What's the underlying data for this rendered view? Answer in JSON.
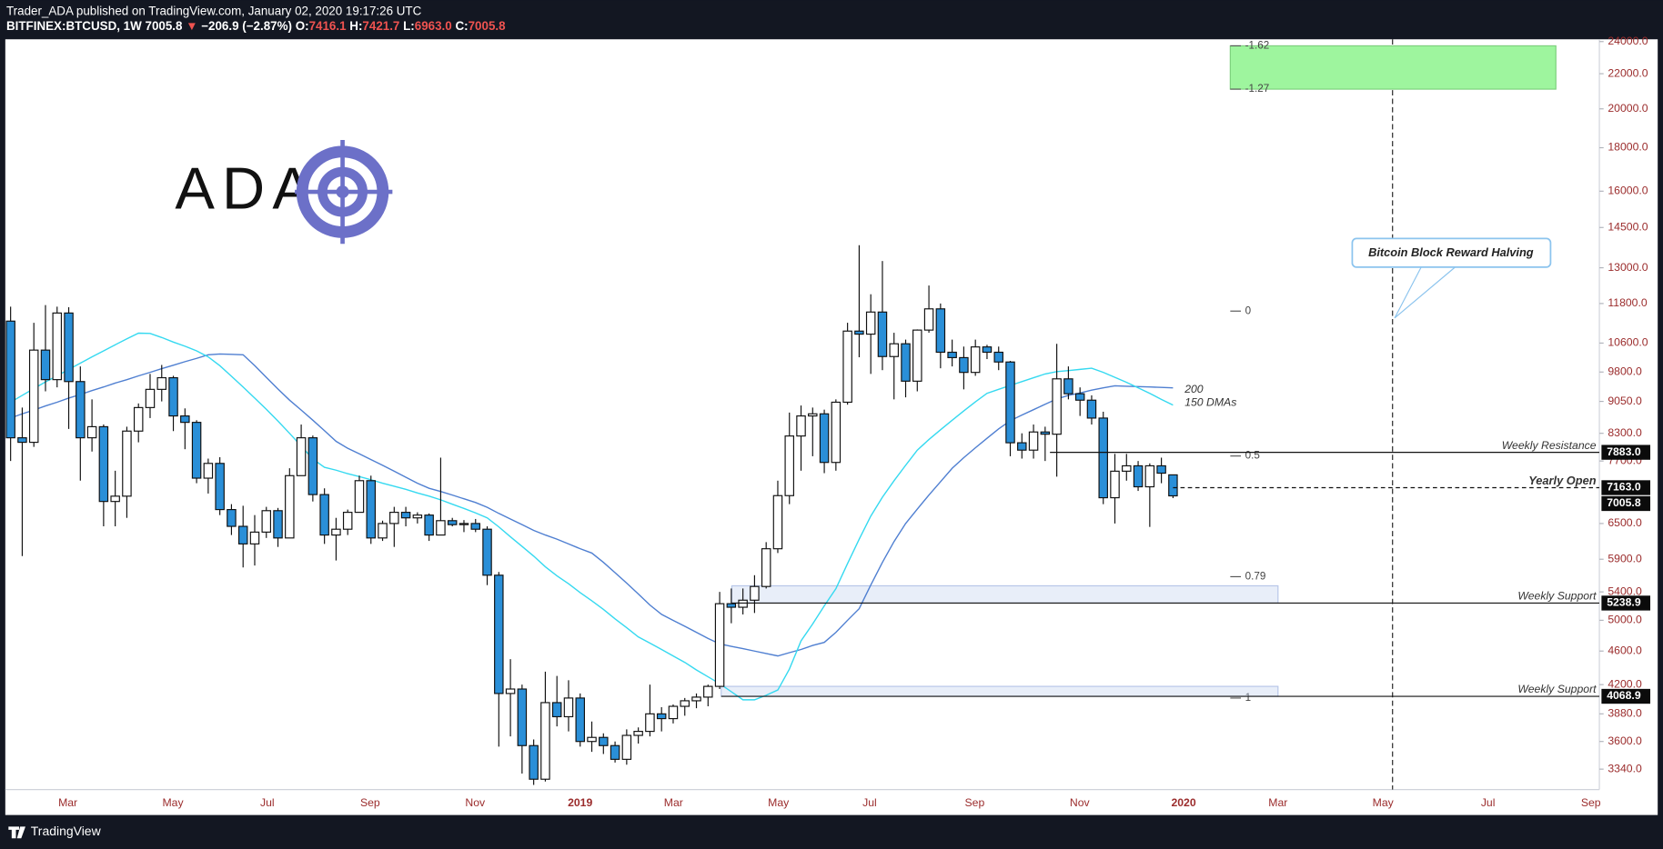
{
  "header": {
    "published": "Trader_ADA published on TradingView.com, January 02, 2020 19:17:26 UTC",
    "symbol": "BITFINEX:BTCUSD, 1W",
    "last": "7005.8",
    "arrow": "▼",
    "change": "−206.9 (−2.87%)",
    "ohlc": [
      {
        "key": "O:",
        "value": "7416.1"
      },
      {
        "key": "H:",
        "value": "7421.7"
      },
      {
        "key": "L:",
        "value": "6963.0"
      },
      {
        "key": "C:",
        "value": "7005.8"
      }
    ]
  },
  "logo": {
    "text": "ADA"
  },
  "footer": {
    "brand": "TradingView"
  },
  "chart_data": {
    "type": "candlestick",
    "ylog": true,
    "grid": false,
    "up_color": "#ffffff",
    "down_color": "#2a8fd8",
    "ylim": [
      3160,
      24150
    ],
    "yticks": [
      {
        "value": 24000,
        "label": "24000.0"
      },
      {
        "value": 22000,
        "label": "22000.0"
      },
      {
        "value": 20000,
        "label": "20000.0"
      },
      {
        "value": 18000,
        "label": "18000.0"
      },
      {
        "value": 16000,
        "label": "16000.0"
      },
      {
        "value": 14500,
        "label": "14500.0"
      },
      {
        "value": 13000,
        "label": "13000.0"
      },
      {
        "value": 11800,
        "label": "11800.0"
      },
      {
        "value": 10600,
        "label": "10600.0"
      },
      {
        "value": 9800,
        "label": "9800.0"
      },
      {
        "value": 9050,
        "label": "9050.0"
      },
      {
        "value": 8300,
        "label": "8300.0"
      },
      {
        "value": 7700,
        "label": "7700.0"
      },
      {
        "value": 6500,
        "label": "6500.0"
      },
      {
        "value": 5900,
        "label": "5900.0"
      },
      {
        "value": 5400,
        "label": "5400.0"
      },
      {
        "value": 5000,
        "label": "5000.0"
      },
      {
        "value": 4600,
        "label": "4600.0"
      },
      {
        "value": 4200,
        "label": "4200.0"
      },
      {
        "value": 3880,
        "label": "3880.0"
      },
      {
        "value": 3600,
        "label": "3600.0"
      },
      {
        "value": 3340,
        "label": "3340.0"
      }
    ],
    "xticks": [
      "Mar",
      "May",
      "Jul",
      "Sep",
      "Nov",
      "2019",
      "Mar",
      "May",
      "Jul",
      "Sep",
      "Nov",
      "2020",
      "Mar",
      "May",
      "Jul",
      "Sep"
    ],
    "candles": [
      [
        11250,
        11700,
        7700,
        8200
      ],
      [
        8200,
        8900,
        5950,
        8100
      ],
      [
        8100,
        11200,
        8000,
        10400
      ],
      [
        10400,
        11750,
        9300,
        9600
      ],
      [
        9600,
        11700,
        9400,
        11500
      ],
      [
        11500,
        11680,
        8400,
        9550
      ],
      [
        9550,
        9950,
        7300,
        8200
      ],
      [
        8200,
        9100,
        7900,
        8450
      ],
      [
        8450,
        8500,
        6450,
        6900
      ],
      [
        6900,
        7500,
        6450,
        7000
      ],
      [
        7000,
        8450,
        6600,
        8350
      ],
      [
        8350,
        9000,
        8100,
        8900
      ],
      [
        8900,
        9750,
        8650,
        9350
      ],
      [
        9350,
        9990,
        9050,
        9650
      ],
      [
        9650,
        9700,
        8350,
        8700
      ],
      [
        8700,
        8880,
        7950,
        8550
      ],
      [
        8550,
        8600,
        7250,
        7350
      ],
      [
        7350,
        7750,
        7050,
        7650
      ],
      [
        7650,
        7780,
        6650,
        6750
      ],
      [
        6750,
        6850,
        6300,
        6450
      ],
      [
        6450,
        6820,
        5770,
        6150
      ],
      [
        6150,
        6650,
        5800,
        6350
      ],
      [
        6350,
        6800,
        6250,
        6730
      ],
      [
        6730,
        6780,
        6100,
        6250
      ],
      [
        6250,
        7550,
        6250,
        7400
      ],
      [
        7400,
        8500,
        7400,
        8200
      ],
      [
        8200,
        8250,
        6900,
        7030
      ],
      [
        7030,
        7150,
        6150,
        6300
      ],
      [
        6300,
        6600,
        5880,
        6400
      ],
      [
        6400,
        6750,
        6300,
        6700
      ],
      [
        6700,
        7400,
        6700,
        7300
      ],
      [
        7300,
        7400,
        6150,
        6250
      ],
      [
        6250,
        6550,
        6200,
        6500
      ],
      [
        6500,
        6800,
        6100,
        6700
      ],
      [
        6700,
        6800,
        6450,
        6600
      ],
      [
        6600,
        6700,
        6500,
        6650
      ],
      [
        6650,
        6680,
        6200,
        6300
      ],
      [
        6300,
        7770,
        6300,
        6550
      ],
      [
        6550,
        6600,
        6450,
        6480
      ],
      [
        6480,
        6560,
        6350,
        6500
      ],
      [
        6500,
        6580,
        6350,
        6400
      ],
      [
        6400,
        6450,
        5500,
        5650
      ],
      [
        5650,
        5700,
        3550,
        4100
      ],
      [
        4100,
        4500,
        3650,
        4150
      ],
      [
        4150,
        4200,
        3300,
        3560
      ],
      [
        3560,
        3620,
        3200,
        3250
      ],
      [
        3250,
        4350,
        3230,
        4000
      ],
      [
        4000,
        4300,
        3750,
        3850
      ],
      [
        3850,
        4250,
        3700,
        4050
      ],
      [
        4050,
        4100,
        3550,
        3600
      ],
      [
        3600,
        3800,
        3500,
        3640
      ],
      [
        3640,
        3680,
        3480,
        3560
      ],
      [
        3560,
        3600,
        3400,
        3430
      ],
      [
        3430,
        3720,
        3380,
        3660
      ],
      [
        3660,
        3740,
        3580,
        3700
      ],
      [
        3700,
        4200,
        3650,
        3880
      ],
      [
        3880,
        3950,
        3700,
        3830
      ],
      [
        3830,
        3980,
        3780,
        3960
      ],
      [
        3960,
        4050,
        3860,
        4020
      ],
      [
        4020,
        4100,
        3940,
        4060
      ],
      [
        4060,
        4200,
        3960,
        4180
      ],
      [
        4180,
        5400,
        4150,
        5230
      ],
      [
        5230,
        5450,
        4960,
        5180
      ],
      [
        5180,
        5450,
        5080,
        5280
      ],
      [
        5280,
        5650,
        5100,
        5480
      ],
      [
        5480,
        6180,
        5450,
        6070
      ],
      [
        6070,
        7300,
        6000,
        7010
      ],
      [
        7010,
        8780,
        6850,
        8240
      ],
      [
        8240,
        8950,
        7500,
        8700
      ],
      [
        8700,
        8900,
        7800,
        8750
      ],
      [
        8750,
        8850,
        7450,
        7670
      ],
      [
        7670,
        9100,
        7500,
        9030
      ],
      [
        9030,
        11200,
        8970,
        10950
      ],
      [
        10950,
        13820,
        10200,
        10860
      ],
      [
        10860,
        12100,
        9750,
        11530
      ],
      [
        11530,
        13240,
        9850,
        10220
      ],
      [
        10220,
        10900,
        9100,
        10580
      ],
      [
        10580,
        10700,
        9150,
        9560
      ],
      [
        9560,
        11000,
        9300,
        10980
      ],
      [
        10980,
        12390,
        10900,
        11630
      ],
      [
        11630,
        11800,
        9900,
        10340
      ],
      [
        10340,
        10700,
        9950,
        10190
      ],
      [
        10190,
        10500,
        9350,
        9790
      ],
      [
        9790,
        10700,
        9700,
        10490
      ],
      [
        10490,
        10550,
        10150,
        10340
      ],
      [
        10340,
        10500,
        9850,
        10070
      ],
      [
        10070,
        10100,
        7800,
        8090
      ],
      [
        8090,
        8300,
        7750,
        7930
      ],
      [
        7930,
        8500,
        7750,
        8330
      ],
      [
        8330,
        8450,
        7700,
        8280
      ],
      [
        8280,
        10580,
        7380,
        9620
      ],
      [
        9620,
        9950,
        9100,
        9240
      ],
      [
        9240,
        9400,
        8700,
        9080
      ],
      [
        9080,
        9200,
        8500,
        8650
      ],
      [
        8650,
        8800,
        6850,
        6970
      ],
      [
        6970,
        7850,
        6500,
        7490
      ],
      [
        7490,
        7850,
        7300,
        7600
      ],
      [
        7600,
        7700,
        7100,
        7180
      ],
      [
        7180,
        7650,
        6440,
        7600
      ],
      [
        7600,
        7770,
        7250,
        7450
      ],
      [
        7416.1,
        7421.7,
        6963,
        7005.8
      ]
    ],
    "series": [
      {
        "name": "200",
        "color": "#4f7fd1",
        "values": [
          8650,
          8750,
          8840,
          8940,
          9030,
          9130,
          9220,
          9320,
          9410,
          9510,
          9600,
          9700,
          9790,
          9890,
          9980,
          10080,
          10170,
          10270,
          10290,
          10280,
          10270,
          9970,
          9660,
          9360,
          9080,
          8840,
          8600,
          8360,
          8120,
          7970,
          7850,
          7730,
          7610,
          7490,
          7370,
          7250,
          7150,
          7090,
          7020,
          6950,
          6880,
          6790,
          6680,
          6580,
          6480,
          6380,
          6300,
          6230,
          6150,
          6070,
          6000,
          5850,
          5690,
          5530,
          5370,
          5210,
          5080,
          5000,
          4920,
          4840,
          4760,
          4690,
          4660,
          4630,
          4600,
          4570,
          4540,
          4580,
          4620,
          4670,
          4710,
          4840,
          5000,
          5160,
          5500,
          5850,
          6190,
          6500,
          6760,
          7020,
          7280,
          7550,
          7770,
          7980,
          8190,
          8400,
          8590,
          8720,
          8850,
          8980,
          9110,
          9200,
          9260,
          9330,
          9390,
          9440,
          9430,
          9420,
          9410,
          9400,
          9390
        ]
      },
      {
        "name": "150 DMAs",
        "color": "#35d9f0",
        "values": [
          9030,
          9200,
          9370,
          9540,
          9700,
          9870,
          10040,
          10210,
          10380,
          10550,
          10720,
          10890,
          10880,
          10760,
          10630,
          10510,
          10380,
          10210,
          9970,
          9690,
          9410,
          9130,
          8860,
          8580,
          8300,
          8020,
          7740,
          7570,
          7510,
          7440,
          7380,
          7320,
          7250,
          7190,
          7130,
          7060,
          7000,
          6930,
          6850,
          6770,
          6690,
          6600,
          6440,
          6270,
          6110,
          5950,
          5780,
          5640,
          5520,
          5390,
          5270,
          5150,
          5020,
          4900,
          4780,
          4700,
          4620,
          4540,
          4460,
          4370,
          4290,
          4210,
          4120,
          4030,
          4030,
          4080,
          4140,
          4380,
          4730,
          4950,
          5200,
          5450,
          5830,
          6230,
          6630,
          6980,
          7300,
          7610,
          7930,
          8160,
          8380,
          8600,
          8820,
          9040,
          9250,
          9350,
          9450,
          9550,
          9650,
          9750,
          9810,
          9840,
          9870,
          9900,
          9790,
          9660,
          9530,
          9390,
          9250,
          9100,
          8960
        ]
      }
    ],
    "levels": [
      {
        "name": "Weekly Resistance",
        "value": 7883,
        "value_label": "7883.0"
      },
      {
        "name": "Yearly Open",
        "value": 7163,
        "value_label": "7163.0",
        "style": "dashed"
      },
      {
        "name": "Weekly Support",
        "value": 5238.9,
        "value_label": "5238.9",
        "zone_top": 5490
      },
      {
        "name": "Weekly Support",
        "value": 4068.9,
        "value_label": "4068.9",
        "zone_top": 4180
      }
    ],
    "last_price": 7005.8,
    "last_price_label": "7005.8",
    "fib": {
      "high": 11560,
      "low": 4050,
      "levels": [
        -1.62,
        -1.27,
        0,
        0.5,
        0.79,
        1
      ],
      "target_color": "#9ef59e"
    },
    "annotation": "Bitcoin Block Reward Halving"
  }
}
